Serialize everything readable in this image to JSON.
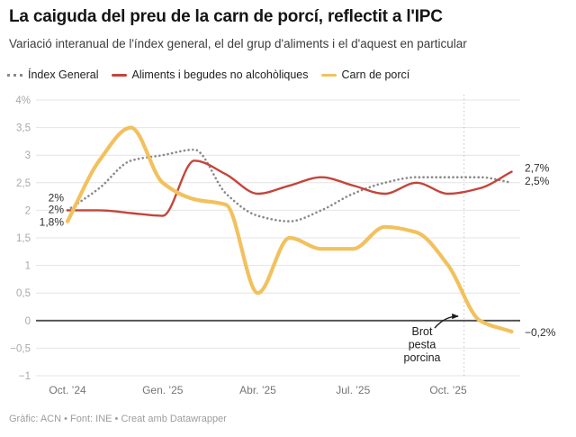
{
  "header": {
    "title": "La caiguda del preu de la carn de porcí, reflectit a l'IPC",
    "subtitle": "Variació interanual de l'índex general, el del grup d'aliments i el d'aquest en particular"
  },
  "footer": {
    "text": "Gràfic: ACN • Font: INE • Creat amb Datawrapper"
  },
  "chart_data": {
    "type": "line",
    "title": "La caiguda del preu de la carn de porcí, reflectit a l'IPC",
    "subtitle": "Variació interanual de l'índex general, el del grup d'aliments i el d'aquest en particular",
    "legend_position": "top",
    "grid": "horizontal",
    "ylim": [
      -1,
      4
    ],
    "x": [
      "oct. 2024",
      "nov. 2024",
      "des. 2024",
      "gen. 2025",
      "febr. 2025",
      "març 2025",
      "abr. 2025",
      "maig 2025",
      "juny 2025",
      "jul. 2025",
      "ag. 2025",
      "set. 2025",
      "oct. 2025",
      "nov. 2025",
      "des. 2025"
    ],
    "x_axis": {
      "ticks": [
        {
          "index": 0,
          "label": "Oct. ’24"
        },
        {
          "index": 3,
          "label": "Gen. ’25"
        },
        {
          "index": 6,
          "label": "Abr. ’25"
        },
        {
          "index": 9,
          "label": "Jul. ’25"
        },
        {
          "index": 12,
          "label": "Oct. ’25"
        }
      ]
    },
    "y_axis": {
      "ticks": [
        {
          "value": 4,
          "label": "4%"
        },
        {
          "value": 3.5,
          "label": "3,5"
        },
        {
          "value": 3,
          "label": "3"
        },
        {
          "value": 2.5,
          "label": "2,5"
        },
        {
          "value": 2,
          "label": "2"
        },
        {
          "value": 1.5,
          "label": "1,5"
        },
        {
          "value": 1,
          "label": "1"
        },
        {
          "value": 0.5,
          "label": "0,5"
        },
        {
          "value": 0,
          "label": "0"
        },
        {
          "value": -0.5,
          "label": "−0,5"
        },
        {
          "value": -1,
          "label": "−1"
        }
      ]
    },
    "series": [
      {
        "id": "index-general",
        "name": "Índex General",
        "color": "#8a8a8a",
        "dash": "dotted",
        "width": 2.6,
        "values": [
          2.0,
          2.4,
          2.9,
          3.0,
          3.1,
          2.3,
          1.9,
          1.8,
          2.0,
          2.3,
          2.5,
          2.6,
          2.6,
          2.6,
          2.5
        ],
        "start_label": "2%",
        "end_label": "2,5%",
        "start_label_dy": -14,
        "end_label_dy": -2
      },
      {
        "id": "aliments",
        "name": "Aliments i begudes no alcohòliques",
        "color": "#c4453a",
        "dash": "solid",
        "width": 2.4,
        "values": [
          2.0,
          2.0,
          1.95,
          1.9,
          2.9,
          2.65,
          2.3,
          2.45,
          2.6,
          2.45,
          2.3,
          2.5,
          2.3,
          2.4,
          2.7
        ],
        "start_label": "2%",
        "end_label": "2,7%",
        "start_label_dy": -1,
        "end_label_dy": -4
      },
      {
        "id": "carn-de-porci",
        "name": "Carn de porcí",
        "color": "#f2c15e",
        "dash": "solid",
        "width": 4.2,
        "values": [
          1.8,
          2.9,
          3.5,
          2.5,
          2.2,
          2.1,
          0.5,
          1.5,
          1.3,
          1.3,
          1.7,
          1.6,
          1.0,
          0.0,
          -0.2
        ],
        "start_label": "1,8%",
        "end_label": "−0,2%",
        "start_label_dy": 1,
        "end_label_dy": 1
      }
    ],
    "event_line": {
      "x_index": 12.5
    },
    "annotation": {
      "lines": [
        "Brot",
        "pesta",
        "porcina"
      ]
    }
  }
}
